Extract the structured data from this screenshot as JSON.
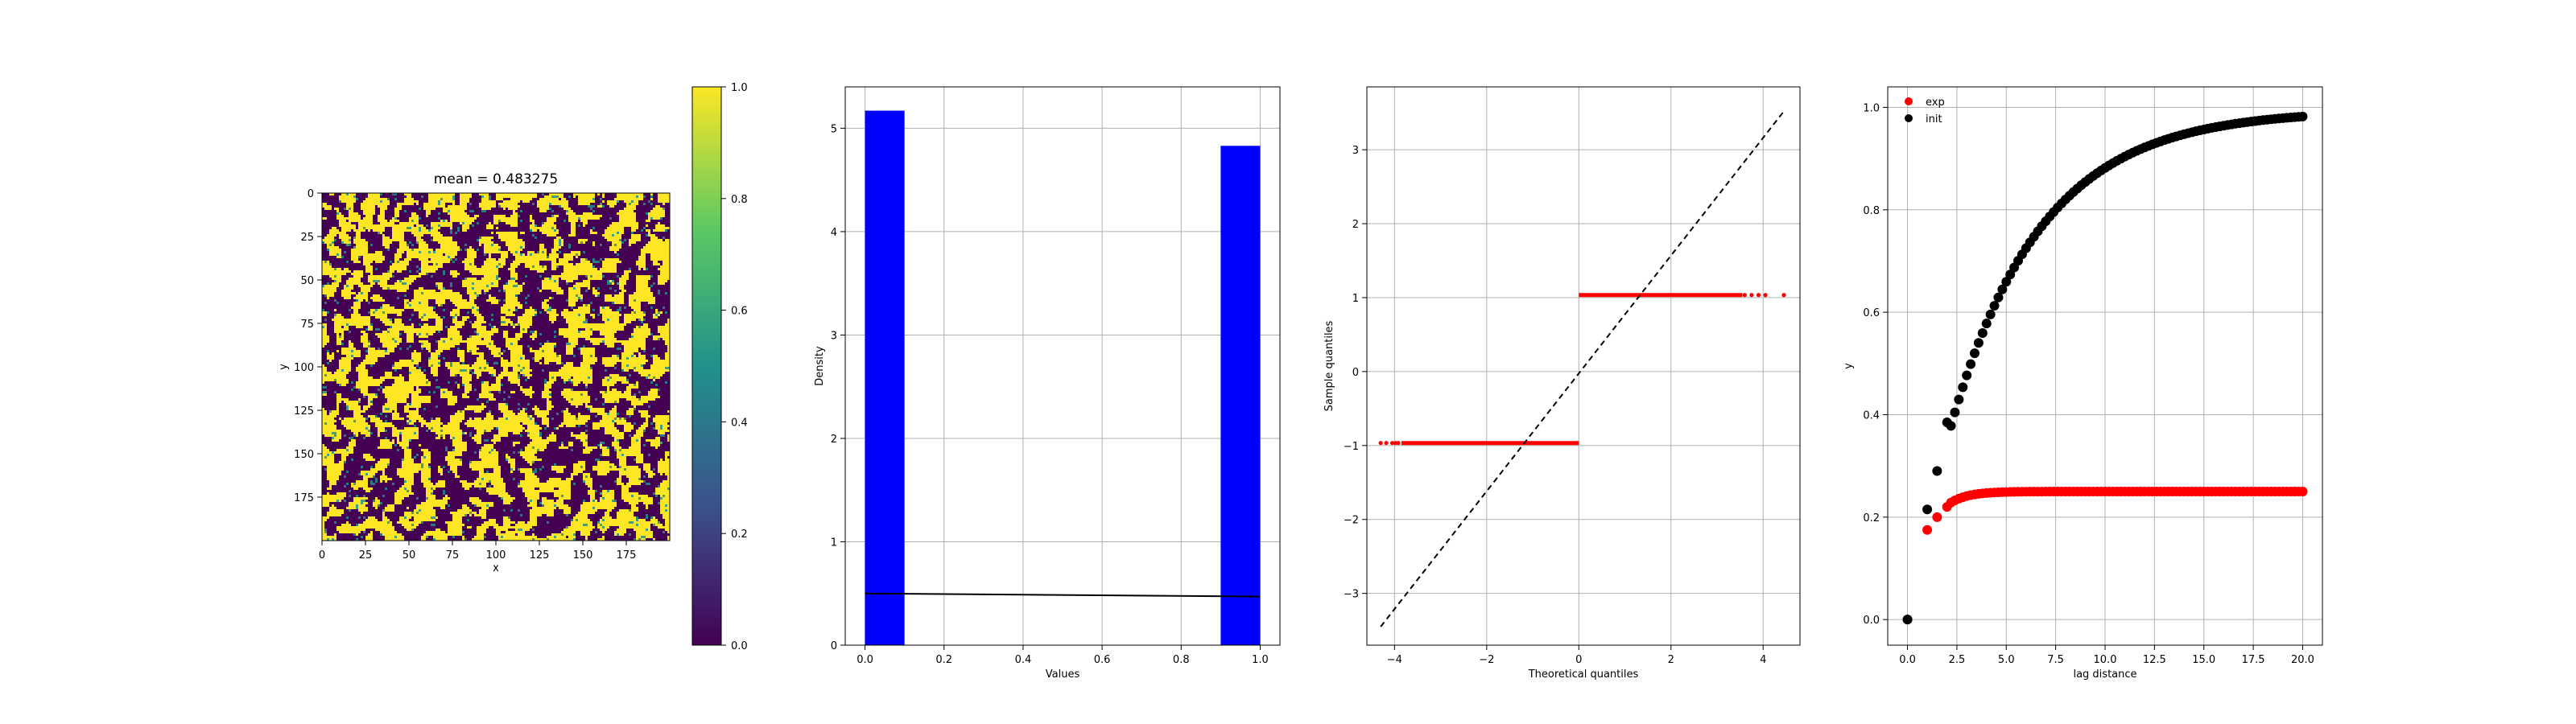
{
  "colors": {
    "bar": "#0000ff",
    "qq_points": "#ff0000",
    "exp": "#ff0000",
    "init": "#000000",
    "viridis": [
      "#440154",
      "#3b528b",
      "#21918c",
      "#5ec962",
      "#fde725"
    ]
  },
  "chart_data": [
    {
      "type": "heatmap",
      "title": "mean = 0.483275",
      "xlabel": "x",
      "ylabel": "y",
      "xlim": [
        0,
        200
      ],
      "ylim": [
        200,
        0
      ],
      "xticks": [
        0,
        25,
        50,
        75,
        100,
        125,
        150,
        175
      ],
      "yticks": [
        0,
        25,
        50,
        75,
        100,
        125,
        150,
        175
      ],
      "grid_size": 200,
      "mean": 0.483275,
      "value_range": [
        0,
        1
      ],
      "colormap": "viridis",
      "colorbar_ticks": [
        "0.0",
        "0.2",
        "0.4",
        "0.6",
        "0.8",
        "1.0"
      ]
    },
    {
      "type": "bar",
      "xlabel": "Values",
      "ylabel": "Density",
      "xlim": [
        -0.05,
        1.05
      ],
      "ylim": [
        0,
        5.4
      ],
      "xticks": [
        "0.0",
        "0.2",
        "0.4",
        "0.6",
        "0.8",
        "1.0"
      ],
      "yticks": [
        "0",
        "1",
        "2",
        "3",
        "4",
        "5"
      ],
      "grid": true,
      "bins": [
        {
          "x0": 0.0,
          "x1": 0.1,
          "value": 5.17
        },
        {
          "x0": 0.9,
          "x1": 1.0,
          "value": 4.83
        }
      ],
      "line": {
        "x": [
          0.0,
          1.0
        ],
        "y": [
          0.5,
          0.47
        ]
      }
    },
    {
      "type": "scatter",
      "xlabel": "Theoretical quantiles",
      "ylabel": "Sample quantiles",
      "xlim": [
        -4.6,
        4.8
      ],
      "ylim": [
        -3.7,
        3.85
      ],
      "xticks": [
        -4,
        -2,
        0,
        2,
        4
      ],
      "yticks": [
        -3,
        -2,
        -1,
        0,
        1,
        2,
        3
      ],
      "grid": true,
      "series": [
        {
          "segment": {
            "x0": -4.3,
            "x1": 0.0,
            "y": -0.966
          }
        },
        {
          "segment": {
            "x0": 0.0,
            "x1": 4.45,
            "y": 1.035
          }
        }
      ],
      "reference_line": {
        "x": [
          -4.3,
          4.45
        ],
        "y": [
          -3.45,
          3.52
        ]
      }
    },
    {
      "type": "scatter",
      "xlabel": "lag distance",
      "ylabel": "y",
      "xlim": [
        -1.0,
        21.0
      ],
      "ylim": [
        -0.05,
        1.04
      ],
      "xticks": [
        "0.0",
        "2.5",
        "5.0",
        "7.5",
        "10.0",
        "12.5",
        "15.0",
        "17.5",
        "20.0"
      ],
      "yticks": [
        "0.0",
        "0.2",
        "0.4",
        "0.6",
        "0.8",
        "1.0"
      ],
      "grid": true,
      "legend": "top-left",
      "series": [
        {
          "name": "exp",
          "model": {
            "sill": 0.25,
            "range": 0.9,
            "first": [
              [
                0.0,
                0.0
              ],
              [
                1.0,
                0.175
              ],
              [
                1.5,
                0.2
              ],
              [
                2.0,
                0.22
              ]
            ]
          }
        },
        {
          "name": "init",
          "model": {
            "sill": 0.995,
            "range": 4.6,
            "first": [
              [
                0.0,
                0.0
              ],
              [
                1.0,
                0.215
              ],
              [
                1.5,
                0.29
              ],
              [
                2.0,
                0.385
              ]
            ]
          }
        }
      ]
    }
  ]
}
